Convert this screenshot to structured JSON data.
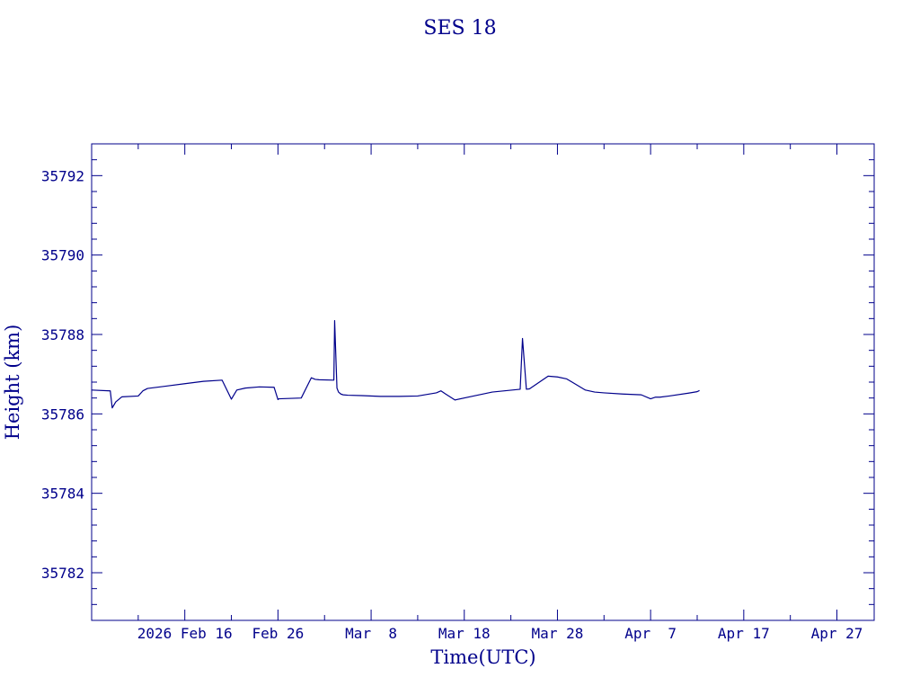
{
  "colors": {
    "ink": "#00008b",
    "background": "#ffffff"
  },
  "chart_data": {
    "type": "line",
    "title": "SES 18",
    "xlabel": "Time(UTC)",
    "ylabel": "Height (km)",
    "x_axis": "date",
    "xlim": [
      "2026-02-06",
      "2026-05-01"
    ],
    "ylim": [
      35780.8,
      35792.8
    ],
    "grid": false,
    "legend": "none",
    "x_ticks": [
      {
        "date": "2026-02-16",
        "label": "2026 Feb 16"
      },
      {
        "date": "2026-02-26",
        "label": "Feb 26"
      },
      {
        "date": "2026-03-08",
        "label": "Mar  8"
      },
      {
        "date": "2026-03-18",
        "label": "Mar 18"
      },
      {
        "date": "2026-03-28",
        "label": "Mar 28"
      },
      {
        "date": "2026-04-07",
        "label": "Apr  7"
      },
      {
        "date": "2026-04-17",
        "label": "Apr 17"
      },
      {
        "date": "2026-04-27",
        "label": "Apr 27"
      }
    ],
    "y_ticks": [
      {
        "value": 35782,
        "label": "35782"
      },
      {
        "value": 35784,
        "label": "35784"
      },
      {
        "value": 35786,
        "label": "35786"
      },
      {
        "value": 35788,
        "label": "35788"
      },
      {
        "value": 35790,
        "label": "35790"
      },
      {
        "value": 35792,
        "label": "35792"
      }
    ],
    "series": [
      {
        "x": [
          "2026-02-06T00:00",
          "2026-02-08T00:00",
          "2026-02-08T05:00",
          "2026-02-08T14:00",
          "2026-02-09T06:00",
          "2026-02-11T00:00",
          "2026-02-11T12:00",
          "2026-02-12T00:00",
          "2026-02-14T00:00",
          "2026-02-16T00:00",
          "2026-02-18T00:00",
          "2026-02-20T00:00",
          "2026-02-21T00:00",
          "2026-02-21T14:00",
          "2026-02-22T12:00",
          "2026-02-24T00:00",
          "2026-02-25T14:00",
          "2026-02-26T00:00",
          "2026-02-26T02:00",
          "2026-02-28T12:00",
          "2026-03-01T14:00",
          "2026-03-02T00:00",
          "2026-03-02T10:00",
          "2026-03-04T00:00",
          "2026-03-04T02:00",
          "2026-03-04T08:00",
          "2026-03-04T12:00",
          "2026-03-04T18:00",
          "2026-03-05T00:00",
          "2026-03-05T12:00",
          "2026-03-07T00:00",
          "2026-03-09T00:00",
          "2026-03-11T00:00",
          "2026-03-13T00:00",
          "2026-03-15T00:00",
          "2026-03-15T12:00",
          "2026-03-16T00:00",
          "2026-03-17T00:00",
          "2026-03-19T00:00",
          "2026-03-21T00:00",
          "2026-03-24T00:00",
          "2026-03-24T06:00",
          "2026-03-24T16:00",
          "2026-03-25T00:00",
          "2026-03-27T00:00",
          "2026-03-28T00:00",
          "2026-03-29T00:00",
          "2026-03-31T00:00",
          "2026-04-01T00:00",
          "2026-04-02T00:00",
          "2026-04-04T00:00",
          "2026-04-06T00:00",
          "2026-04-07T00:00",
          "2026-04-07T12:00",
          "2026-04-08T00:00",
          "2026-04-09T00:00",
          "2026-04-11T00:00",
          "2026-04-12T00:00",
          "2026-04-12T06:00"
        ],
        "y": [
          35786.6,
          35786.58,
          35786.15,
          35786.3,
          35786.43,
          35786.45,
          35786.58,
          35786.64,
          35786.7,
          35786.76,
          35786.82,
          35786.85,
          35786.37,
          35786.6,
          35786.65,
          35786.68,
          35786.67,
          35786.36,
          35786.38,
          35786.4,
          35786.91,
          35786.87,
          35786.86,
          35786.85,
          35788.35,
          35786.65,
          35786.55,
          35786.5,
          35786.48,
          35786.47,
          35786.46,
          35786.44,
          35786.44,
          35786.45,
          35786.53,
          35786.58,
          35786.5,
          35786.35,
          35786.45,
          35786.55,
          35786.62,
          35787.9,
          35786.62,
          35786.63,
          35786.95,
          35786.93,
          35786.88,
          35786.6,
          35786.55,
          35786.53,
          35786.5,
          35786.48,
          35786.38,
          35786.42,
          35786.42,
          35786.45,
          35786.52,
          35786.56,
          35786.59
        ]
      }
    ]
  }
}
